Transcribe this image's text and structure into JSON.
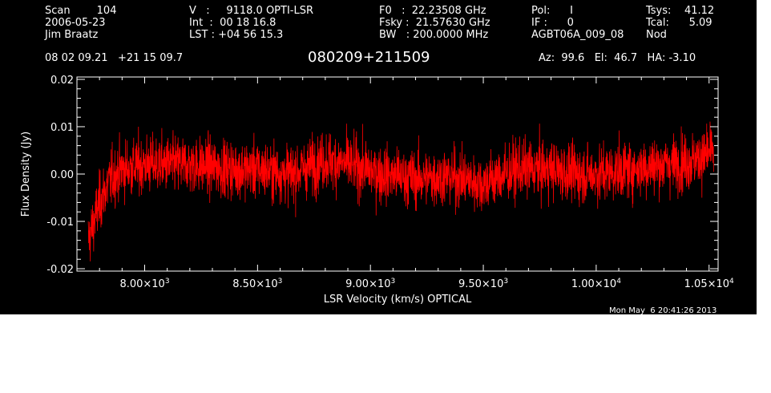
{
  "header": {
    "col1": [
      "Scan        104",
      "2006-05-23",
      "Jim Braatz"
    ],
    "col2": [
      "V   :     9118.0 OPTI-LSR",
      "Int  :  00 18 16.8",
      "LST : +04 56 15.3"
    ],
    "col3": [
      "F0   :  22.23508 GHz",
      "Fsky :  21.57630 GHz",
      "BW   : 200.0000 MHz"
    ],
    "col4": [
      "Pol:      I",
      "IF :      0",
      "AGBT06A_009_08"
    ],
    "col5": [
      "Tsys:    41.12",
      "Tcal:      5.09",
      "Nod"
    ],
    "coords": "08 02 09.21   +21 15 09.7",
    "source": "080209+211509",
    "pointing": "Az:  99.6   El:  46.7   HA: -3.10"
  },
  "timestamp": "Mon May  6 20:41:26 2013",
  "chart_data": {
    "type": "line",
    "xlabel": "LSR Velocity (km/s) OPTICAL",
    "ylabel": "Flux Density (Jy)",
    "xlim": [
      7700,
      10540
    ],
    "ylim": [
      -0.0205,
      0.0205
    ],
    "xticks": [
      {
        "value": 8000,
        "mant": "8.00",
        "exp": "3"
      },
      {
        "value": 8500,
        "mant": "8.50",
        "exp": "3"
      },
      {
        "value": 9000,
        "mant": "9.00",
        "exp": "3"
      },
      {
        "value": 9500,
        "mant": "9.50",
        "exp": "3"
      },
      {
        "value": 10000,
        "mant": "1.00",
        "exp": "4"
      },
      {
        "value": 10500,
        "mant": "1.05",
        "exp": "4"
      }
    ],
    "yticks": [
      {
        "value": -0.02,
        "label": "-0.02"
      },
      {
        "value": -0.01,
        "label": "-0.01"
      },
      {
        "value": 0.0,
        "label": "0.00"
      },
      {
        "value": 0.01,
        "label": "0.01"
      },
      {
        "value": 0.02,
        "label": "0.02"
      }
    ],
    "series": [
      {
        "color": "#ff0000",
        "x_range": [
          7750,
          10520
        ],
        "baseline": [
          [
            7750,
            -0.014
          ],
          [
            7770,
            -0.011
          ],
          [
            7800,
            -0.006
          ],
          [
            7850,
            -0.001
          ],
          [
            7900,
            0.001
          ],
          [
            8000,
            0.002
          ],
          [
            8200,
            0.002
          ],
          [
            8400,
            0.001
          ],
          [
            8500,
            0.001
          ],
          [
            8650,
            0.0
          ],
          [
            8800,
            0.003
          ],
          [
            8900,
            0.002
          ],
          [
            9050,
            0.0
          ],
          [
            9200,
            -0.001
          ],
          [
            9350,
            -0.0005
          ],
          [
            9500,
            -0.002
          ],
          [
            9650,
            0.001
          ],
          [
            9800,
            0.001
          ],
          [
            9900,
            0.0
          ],
          [
            10000,
            0.0
          ],
          [
            10150,
            0.001
          ],
          [
            10300,
            0.002
          ],
          [
            10450,
            0.003
          ],
          [
            10520,
            0.005
          ]
        ],
        "noise_rms": 0.003
      }
    ]
  }
}
